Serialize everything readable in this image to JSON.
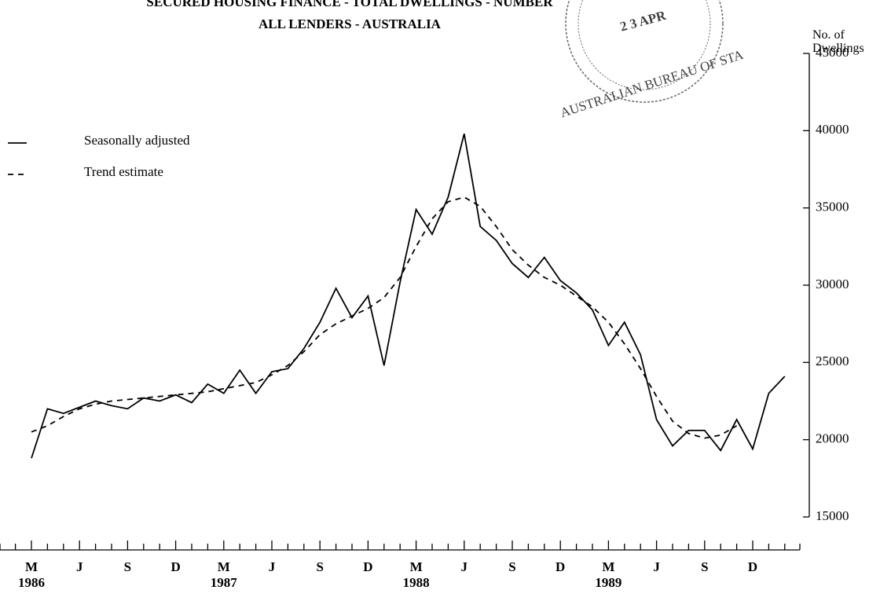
{
  "chart_data": {
    "type": "line",
    "title": "SECURED HOUSING FINANCE - TOTAL DWELLINGS - NUMBER",
    "subtitle": "ALL LENDERS - AUSTRALIA",
    "y_label": "No. of Dwellings",
    "stamp": [
      "2 3 APR",
      "AUSTRALIAN BUREAU OF STA"
    ],
    "categories": [
      "M",
      null,
      null,
      "J",
      null,
      null,
      "S",
      null,
      null,
      "D",
      null,
      null,
      "M",
      null,
      null,
      "J",
      null,
      null,
      "S",
      null,
      null,
      "D",
      null,
      null,
      "M",
      null,
      null,
      "J",
      null,
      null,
      "S",
      null,
      null,
      "D",
      null,
      null,
      "M",
      null,
      null,
      "J",
      null,
      null,
      "S",
      null,
      null,
      "D",
      null,
      null
    ],
    "years": [
      "1986",
      null,
      null,
      null,
      null,
      null,
      null,
      null,
      null,
      null,
      null,
      null,
      "1987",
      null,
      null,
      null,
      null,
      null,
      null,
      null,
      null,
      null,
      null,
      null,
      "1988",
      null,
      null,
      null,
      null,
      null,
      null,
      null,
      null,
      null,
      null,
      null,
      "1989",
      null,
      null,
      null,
      null,
      null,
      null,
      null,
      null,
      null,
      null,
      null
    ],
    "series": [
      {
        "name": "Seasonally adjusted",
        "color": "#000",
        "dash": "none",
        "values": [
          18800,
          22000,
          21700,
          22100,
          22500,
          22200,
          22000,
          22700,
          22500,
          22900,
          22400,
          23600,
          23000,
          24500,
          23000,
          24400,
          24600,
          25900,
          27600,
          29800,
          27900,
          29300,
          24800,
          30200,
          34900,
          33300,
          35700,
          39800,
          33800,
          32900,
          31400,
          30500,
          31800,
          30300,
          29500,
          28400,
          26100,
          27600,
          25500,
          21300,
          19600,
          20600,
          20600,
          19300,
          21300,
          19400,
          23000,
          24100
        ]
      },
      {
        "name": "Trend estimate",
        "color": "#000",
        "dash": "7 6",
        "values": [
          20500,
          20900,
          21500,
          22000,
          22300,
          22500,
          22600,
          22700,
          22800,
          22900,
          23000,
          23100,
          23300,
          23500,
          23700,
          24200,
          24800,
          25700,
          26800,
          27500,
          28000,
          28500,
          29200,
          30500,
          32500,
          34300,
          35400,
          35700,
          35100,
          33800,
          32300,
          31300,
          30500,
          30000,
          29300,
          28600,
          27600,
          26200,
          24600,
          22800,
          21200,
          20400,
          20100,
          20300,
          20900,
          null,
          null,
          null
        ]
      }
    ],
    "ylim": [
      15000,
      45000
    ],
    "yticks": [
      15000,
      20000,
      25000,
      30000,
      35000,
      40000,
      45000
    ],
    "grid": false,
    "legend": "top-left"
  }
}
